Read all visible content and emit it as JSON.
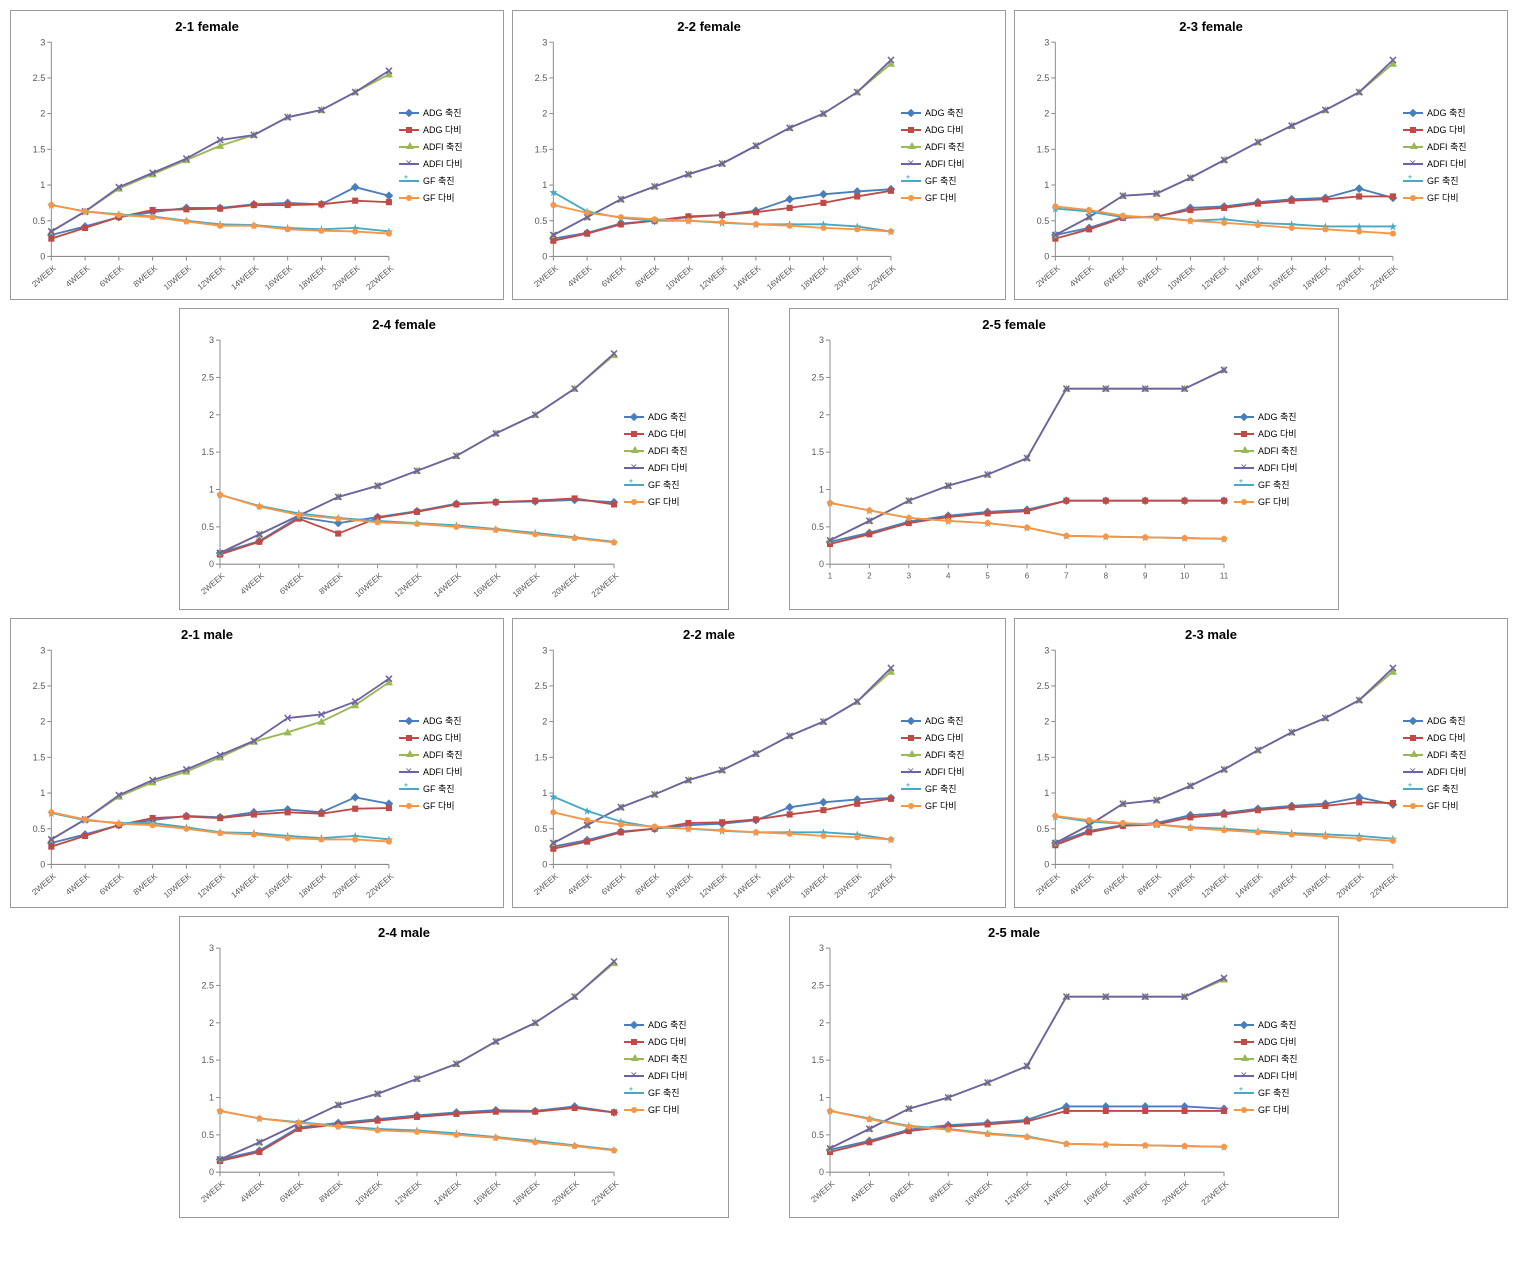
{
  "legend_labels": [
    "ADG 축진",
    "ADG 다비",
    "ADFI 축진",
    "ADFI 다비",
    "GF 축진",
    "GF 다비"
  ],
  "series_colors": {
    "adg1": "#4a7ebb",
    "adg2": "#be4b48",
    "adfi1": "#98b954",
    "adfi2": "#7062a2",
    "gf1": "#46aac5",
    "gf2": "#f79646"
  },
  "markers": {
    "adg1": "diamond",
    "adg2": "square",
    "adfi1": "triangle",
    "adfi2": "x",
    "gf1": "star",
    "gf2": "circle"
  },
  "x_categories_week": [
    "2WEEK",
    "4WEEK",
    "6WEEK",
    "8WEEK",
    "10WEEK",
    "12WEEK",
    "14WEEK",
    "16WEEK",
    "18WEEK",
    "20WEEK",
    "22WEEK"
  ],
  "x_categories_num": [
    "1",
    "2",
    "3",
    "4",
    "5",
    "6",
    "7",
    "8",
    "9",
    "10",
    "11"
  ],
  "ylim": [
    0,
    3
  ],
  "ytick_step": 0.5,
  "grid_color": "#bfbfbf",
  "background_color": "#ffffff",
  "title_fontsize": 13,
  "tick_fontsize": 9,
  "charts": [
    {
      "title": "2-1 female",
      "xcats": "week",
      "series": {
        "adg1": [
          0.3,
          0.42,
          0.55,
          0.62,
          0.68,
          0.68,
          0.73,
          0.75,
          0.73,
          0.97,
          0.85
        ],
        "adg2": [
          0.25,
          0.4,
          0.55,
          0.65,
          0.66,
          0.67,
          0.72,
          0.72,
          0.73,
          0.78,
          0.76
        ],
        "adfi1": [
          0.35,
          0.63,
          0.95,
          1.15,
          1.35,
          1.55,
          1.7,
          1.95,
          2.05,
          2.3,
          2.55
        ],
        "adfi2": [
          0.35,
          0.63,
          0.97,
          1.17,
          1.37,
          1.63,
          1.7,
          1.95,
          2.05,
          2.3,
          2.6
        ],
        "gf1": [
          0.72,
          0.63,
          0.59,
          0.56,
          0.5,
          0.45,
          0.44,
          0.4,
          0.38,
          0.4,
          0.35
        ],
        "gf2": [
          0.72,
          0.63,
          0.58,
          0.55,
          0.49,
          0.43,
          0.43,
          0.38,
          0.36,
          0.35,
          0.32
        ]
      }
    },
    {
      "title": "2-2 female",
      "xcats": "week",
      "series": {
        "adg1": [
          0.25,
          0.33,
          0.46,
          0.5,
          0.55,
          0.58,
          0.64,
          0.8,
          0.87,
          0.91,
          0.94
        ],
        "adg2": [
          0.22,
          0.32,
          0.45,
          0.5,
          0.56,
          0.58,
          0.62,
          0.68,
          0.75,
          0.84,
          0.92
        ],
        "adfi1": [
          0.3,
          0.55,
          0.8,
          0.98,
          1.15,
          1.3,
          1.55,
          1.8,
          2.0,
          2.3,
          2.7
        ],
        "adfi2": [
          0.3,
          0.55,
          0.8,
          0.98,
          1.15,
          1.3,
          1.55,
          1.8,
          2.0,
          2.3,
          2.75
        ],
        "gf1": [
          0.9,
          0.63,
          0.54,
          0.5,
          0.5,
          0.47,
          0.45,
          0.45,
          0.45,
          0.42,
          0.35
        ],
        "gf2": [
          0.72,
          0.61,
          0.55,
          0.52,
          0.5,
          0.48,
          0.45,
          0.43,
          0.4,
          0.38,
          0.35
        ]
      }
    },
    {
      "title": "2-3 female",
      "xcats": "week",
      "series": {
        "adg1": [
          0.3,
          0.4,
          0.55,
          0.55,
          0.68,
          0.7,
          0.76,
          0.8,
          0.82,
          0.95,
          0.82
        ],
        "adg2": [
          0.25,
          0.38,
          0.54,
          0.56,
          0.65,
          0.68,
          0.74,
          0.78,
          0.8,
          0.84,
          0.84
        ],
        "adfi1": [
          0.3,
          0.55,
          0.85,
          0.88,
          1.1,
          1.35,
          1.6,
          1.83,
          2.05,
          2.3,
          2.7
        ],
        "adfi2": [
          0.3,
          0.55,
          0.85,
          0.88,
          1.1,
          1.35,
          1.6,
          1.83,
          2.05,
          2.3,
          2.75
        ],
        "gf1": [
          0.67,
          0.63,
          0.55,
          0.55,
          0.5,
          0.52,
          0.47,
          0.45,
          0.42,
          0.42,
          0.42
        ],
        "gf2": [
          0.7,
          0.65,
          0.57,
          0.54,
          0.5,
          0.47,
          0.44,
          0.4,
          0.38,
          0.35,
          0.32
        ]
      }
    },
    {
      "title": "2-4 female",
      "xcats": "week",
      "series": {
        "adg1": [
          0.15,
          0.31,
          0.63,
          0.55,
          0.63,
          0.71,
          0.81,
          0.83,
          0.84,
          0.86,
          0.83
        ],
        "adg2": [
          0.13,
          0.3,
          0.61,
          0.41,
          0.62,
          0.7,
          0.8,
          0.83,
          0.85,
          0.88,
          0.8
        ],
        "adfi1": [
          0.15,
          0.4,
          0.65,
          0.9,
          1.05,
          1.25,
          1.45,
          1.75,
          2.0,
          2.35,
          2.8
        ],
        "adfi2": [
          0.15,
          0.4,
          0.65,
          0.9,
          1.05,
          1.25,
          1.45,
          1.75,
          2.0,
          2.35,
          2.82
        ],
        "gf1": [
          0.93,
          0.78,
          0.68,
          0.62,
          0.58,
          0.55,
          0.52,
          0.47,
          0.42,
          0.36,
          0.3
        ],
        "gf2": [
          0.93,
          0.77,
          0.66,
          0.61,
          0.56,
          0.54,
          0.5,
          0.46,
          0.4,
          0.35,
          0.29
        ]
      }
    },
    {
      "title": "2-5 female",
      "xcats": "num",
      "series": {
        "adg1": [
          0.3,
          0.42,
          0.57,
          0.65,
          0.7,
          0.73,
          0.85,
          0.85,
          0.85,
          0.85,
          0.85
        ],
        "adg2": [
          0.27,
          0.4,
          0.55,
          0.63,
          0.68,
          0.71,
          0.85,
          0.85,
          0.85,
          0.85,
          0.85
        ],
        "adfi1": [
          0.32,
          0.58,
          0.85,
          1.05,
          1.2,
          1.42,
          2.35,
          2.35,
          2.35,
          2.35,
          2.6
        ],
        "adfi2": [
          0.32,
          0.58,
          0.85,
          1.05,
          1.2,
          1.42,
          2.35,
          2.35,
          2.35,
          2.35,
          2.6
        ],
        "gf1": [
          0.82,
          0.72,
          0.62,
          0.58,
          0.55,
          0.49,
          0.38,
          0.37,
          0.36,
          0.35,
          0.34
        ],
        "gf2": [
          0.82,
          0.72,
          0.62,
          0.58,
          0.55,
          0.49,
          0.38,
          0.37,
          0.36,
          0.35,
          0.34
        ]
      }
    },
    {
      "title": "2-1 male",
      "xcats": "week",
      "series": {
        "adg1": [
          0.3,
          0.42,
          0.55,
          0.62,
          0.68,
          0.66,
          0.73,
          0.77,
          0.73,
          0.94,
          0.85
        ],
        "adg2": [
          0.25,
          0.4,
          0.55,
          0.65,
          0.67,
          0.65,
          0.7,
          0.73,
          0.71,
          0.78,
          0.79
        ],
        "adfi1": [
          0.35,
          0.63,
          0.95,
          1.15,
          1.3,
          1.5,
          1.72,
          1.85,
          2.0,
          2.23,
          2.55
        ],
        "adfi2": [
          0.35,
          0.63,
          0.97,
          1.18,
          1.33,
          1.53,
          1.73,
          2.05,
          2.1,
          2.28,
          2.6
        ],
        "gf1": [
          0.72,
          0.62,
          0.58,
          0.58,
          0.52,
          0.45,
          0.44,
          0.4,
          0.37,
          0.4,
          0.35
        ],
        "gf2": [
          0.73,
          0.63,
          0.57,
          0.55,
          0.5,
          0.44,
          0.42,
          0.37,
          0.35,
          0.35,
          0.32
        ]
      }
    },
    {
      "title": "2-2 male",
      "xcats": "week",
      "series": {
        "adg1": [
          0.25,
          0.34,
          0.46,
          0.5,
          0.55,
          0.57,
          0.62,
          0.8,
          0.87,
          0.91,
          0.93
        ],
        "adg2": [
          0.22,
          0.32,
          0.45,
          0.5,
          0.58,
          0.59,
          0.63,
          0.7,
          0.76,
          0.85,
          0.92
        ],
        "adfi1": [
          0.3,
          0.55,
          0.8,
          0.98,
          1.18,
          1.32,
          1.55,
          1.8,
          2.0,
          2.28,
          2.7
        ],
        "adfi2": [
          0.3,
          0.55,
          0.8,
          0.98,
          1.18,
          1.32,
          1.55,
          1.8,
          2.0,
          2.28,
          2.75
        ],
        "gf1": [
          0.95,
          0.75,
          0.6,
          0.52,
          0.5,
          0.47,
          0.45,
          0.45,
          0.45,
          0.42,
          0.35
        ],
        "gf2": [
          0.73,
          0.62,
          0.56,
          0.53,
          0.5,
          0.48,
          0.45,
          0.43,
          0.4,
          0.38,
          0.35
        ]
      }
    },
    {
      "title": "2-3 male",
      "xcats": "week",
      "series": {
        "adg1": [
          0.3,
          0.47,
          0.55,
          0.58,
          0.69,
          0.72,
          0.78,
          0.82,
          0.85,
          0.94,
          0.84
        ],
        "adg2": [
          0.27,
          0.45,
          0.54,
          0.56,
          0.66,
          0.7,
          0.76,
          0.8,
          0.82,
          0.87,
          0.86
        ],
        "adfi1": [
          0.3,
          0.55,
          0.85,
          0.9,
          1.1,
          1.33,
          1.6,
          1.85,
          2.05,
          2.3,
          2.7
        ],
        "adfi2": [
          0.3,
          0.55,
          0.85,
          0.9,
          1.1,
          1.33,
          1.6,
          1.85,
          2.05,
          2.3,
          2.75
        ],
        "gf1": [
          0.67,
          0.6,
          0.57,
          0.56,
          0.52,
          0.5,
          0.47,
          0.44,
          0.42,
          0.4,
          0.36
        ],
        "gf2": [
          0.68,
          0.62,
          0.58,
          0.56,
          0.51,
          0.48,
          0.45,
          0.42,
          0.39,
          0.36,
          0.33
        ]
      }
    },
    {
      "title": "2-4 male",
      "xcats": "week",
      "series": {
        "adg1": [
          0.17,
          0.29,
          0.6,
          0.66,
          0.71,
          0.76,
          0.8,
          0.83,
          0.82,
          0.88,
          0.8
        ],
        "adg2": [
          0.15,
          0.27,
          0.58,
          0.64,
          0.69,
          0.74,
          0.78,
          0.81,
          0.81,
          0.86,
          0.8
        ],
        "adfi1": [
          0.17,
          0.4,
          0.65,
          0.9,
          1.05,
          1.25,
          1.45,
          1.75,
          2.0,
          2.35,
          2.8
        ],
        "adfi2": [
          0.17,
          0.4,
          0.65,
          0.9,
          1.05,
          1.25,
          1.45,
          1.75,
          2.0,
          2.35,
          2.82
        ],
        "gf1": [
          0.82,
          0.72,
          0.67,
          0.62,
          0.58,
          0.56,
          0.52,
          0.47,
          0.42,
          0.36,
          0.3
        ],
        "gf2": [
          0.82,
          0.72,
          0.66,
          0.61,
          0.56,
          0.54,
          0.5,
          0.46,
          0.4,
          0.35,
          0.29
        ]
      }
    },
    {
      "title": "2-5 male",
      "xcats": "week",
      "series": {
        "adg1": [
          0.3,
          0.42,
          0.57,
          0.63,
          0.66,
          0.7,
          0.88,
          0.88,
          0.88,
          0.88,
          0.85
        ],
        "adg2": [
          0.27,
          0.4,
          0.55,
          0.61,
          0.64,
          0.68,
          0.82,
          0.82,
          0.82,
          0.82,
          0.82
        ],
        "adfi1": [
          0.32,
          0.58,
          0.85,
          1.0,
          1.2,
          1.42,
          2.35,
          2.35,
          2.35,
          2.35,
          2.58
        ],
        "adfi2": [
          0.32,
          0.58,
          0.85,
          1.0,
          1.2,
          1.42,
          2.35,
          2.35,
          2.35,
          2.35,
          2.6
        ],
        "gf1": [
          0.82,
          0.72,
          0.62,
          0.58,
          0.52,
          0.48,
          0.38,
          0.37,
          0.36,
          0.35,
          0.34
        ],
        "gf2": [
          0.82,
          0.71,
          0.61,
          0.57,
          0.51,
          0.47,
          0.38,
          0.37,
          0.36,
          0.35,
          0.34
        ]
      }
    }
  ]
}
